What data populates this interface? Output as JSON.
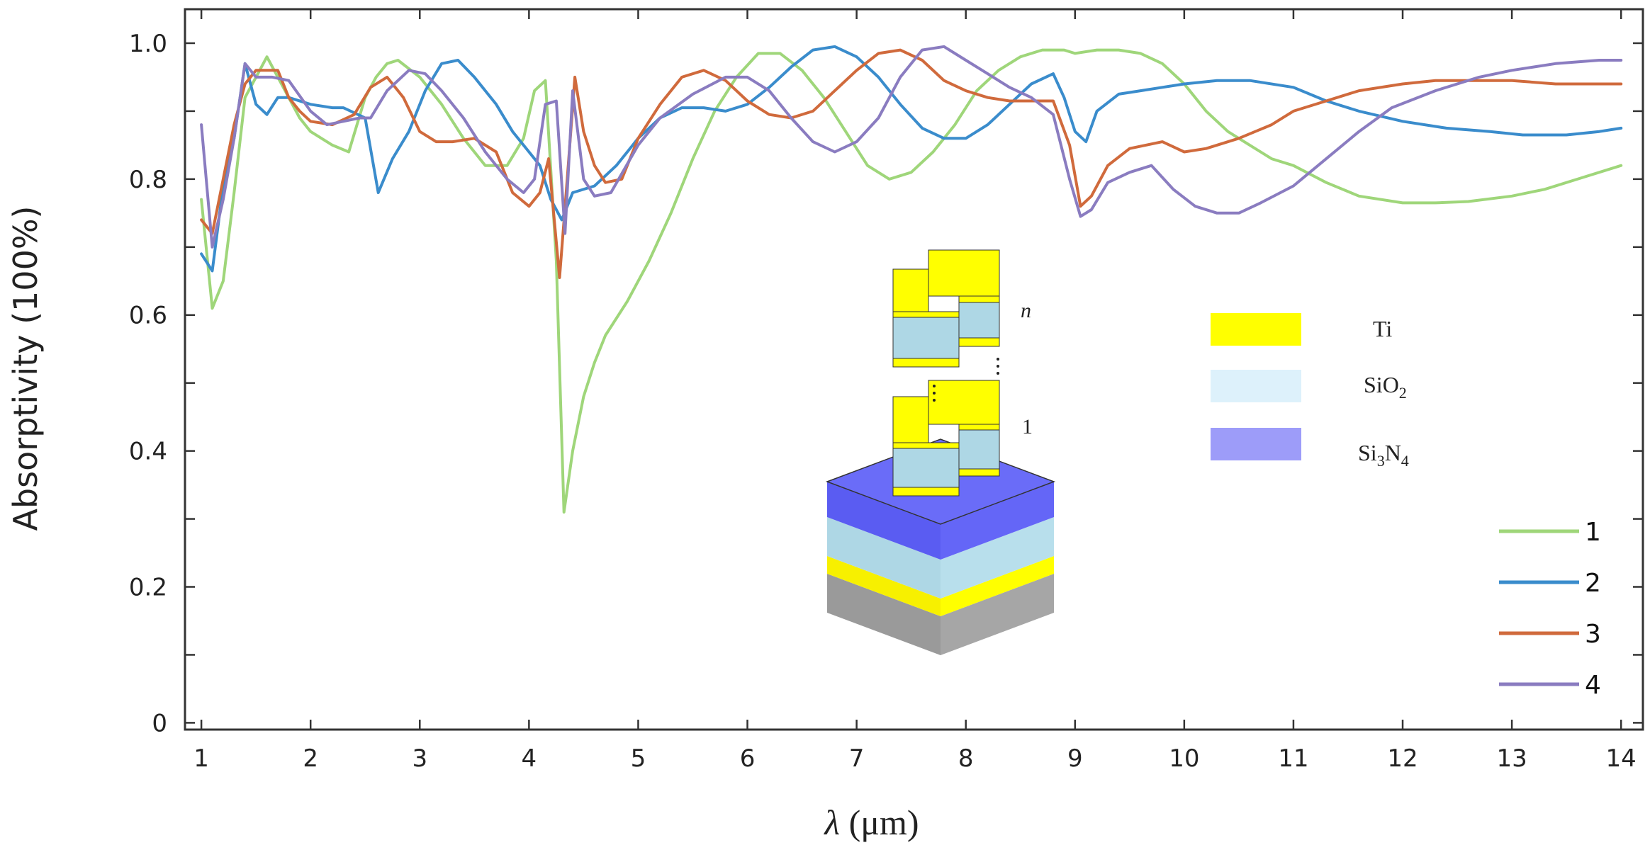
{
  "chart_data": {
    "type": "line",
    "title": "",
    "xlabel_symbol": "λ",
    "xlabel_unit": " (μm)",
    "ylabel": "Absorptivity (100%)",
    "xlim": [
      0.85,
      14.2
    ],
    "ylim": [
      -0.01,
      1.05
    ],
    "xticks": [
      1,
      2,
      3,
      4,
      5,
      6,
      7,
      8,
      9,
      10,
      11,
      12,
      13,
      14
    ],
    "yticks": [
      0,
      0.1,
      0.2,
      0.3,
      0.4,
      0.5,
      0.6,
      0.7,
      0.8,
      0.9,
      1.0
    ],
    "ytick_labels": [
      {
        "value": 0,
        "label": "0"
      },
      {
        "value": 0.2,
        "label": "0.2"
      },
      {
        "value": 0.4,
        "label": "0.4"
      },
      {
        "value": 0.6,
        "label": "0.6"
      },
      {
        "value": 0.8,
        "label": "0.8"
      },
      {
        "value": 1.0,
        "label": "1.0"
      }
    ],
    "legend_position": "bottom-right",
    "series": [
      {
        "name": "1",
        "color": "#9fd67a",
        "points": [
          [
            1,
            0.77
          ],
          [
            1.1,
            0.61
          ],
          [
            1.2,
            0.65
          ],
          [
            1.3,
            0.78
          ],
          [
            1.4,
            0.92
          ],
          [
            1.5,
            0.95
          ],
          [
            1.6,
            0.98
          ],
          [
            1.7,
            0.95
          ],
          [
            1.8,
            0.92
          ],
          [
            1.9,
            0.89
          ],
          [
            2.0,
            0.87
          ],
          [
            2.2,
            0.85
          ],
          [
            2.35,
            0.84
          ],
          [
            2.5,
            0.92
          ],
          [
            2.6,
            0.95
          ],
          [
            2.7,
            0.97
          ],
          [
            2.8,
            0.975
          ],
          [
            3.0,
            0.95
          ],
          [
            3.2,
            0.91
          ],
          [
            3.4,
            0.86
          ],
          [
            3.6,
            0.82
          ],
          [
            3.8,
            0.82
          ],
          [
            3.95,
            0.86
          ],
          [
            4.05,
            0.93
          ],
          [
            4.15,
            0.945
          ],
          [
            4.25,
            0.68
          ],
          [
            4.32,
            0.31
          ],
          [
            4.4,
            0.4
          ],
          [
            4.5,
            0.48
          ],
          [
            4.6,
            0.53
          ],
          [
            4.7,
            0.57
          ],
          [
            4.9,
            0.62
          ],
          [
            5.1,
            0.68
          ],
          [
            5.3,
            0.75
          ],
          [
            5.5,
            0.83
          ],
          [
            5.7,
            0.9
          ],
          [
            5.9,
            0.95
          ],
          [
            6.1,
            0.985
          ],
          [
            6.3,
            0.985
          ],
          [
            6.5,
            0.96
          ],
          [
            6.7,
            0.92
          ],
          [
            6.9,
            0.87
          ],
          [
            7.1,
            0.82
          ],
          [
            7.3,
            0.8
          ],
          [
            7.5,
            0.81
          ],
          [
            7.7,
            0.84
          ],
          [
            7.9,
            0.88
          ],
          [
            8.1,
            0.93
          ],
          [
            8.3,
            0.96
          ],
          [
            8.5,
            0.98
          ],
          [
            8.7,
            0.99
          ],
          [
            8.9,
            0.99
          ],
          [
            9.0,
            0.985
          ],
          [
            9.2,
            0.99
          ],
          [
            9.4,
            0.99
          ],
          [
            9.6,
            0.985
          ],
          [
            9.8,
            0.97
          ],
          [
            10.0,
            0.94
          ],
          [
            10.2,
            0.9
          ],
          [
            10.4,
            0.87
          ],
          [
            10.6,
            0.85
          ],
          [
            10.8,
            0.83
          ],
          [
            11.0,
            0.82
          ],
          [
            11.3,
            0.795
          ],
          [
            11.6,
            0.775
          ],
          [
            12.0,
            0.765
          ],
          [
            12.3,
            0.765
          ],
          [
            12.6,
            0.767
          ],
          [
            13.0,
            0.775
          ],
          [
            13.3,
            0.785
          ],
          [
            13.6,
            0.8
          ],
          [
            14.0,
            0.82
          ]
        ]
      },
      {
        "name": "2",
        "color": "#3a8ccc",
        "points": [
          [
            1,
            0.69
          ],
          [
            1.1,
            0.665
          ],
          [
            1.2,
            0.79
          ],
          [
            1.3,
            0.86
          ],
          [
            1.4,
            0.97
          ],
          [
            1.5,
            0.91
          ],
          [
            1.6,
            0.895
          ],
          [
            1.7,
            0.92
          ],
          [
            1.8,
            0.92
          ],
          [
            2.0,
            0.91
          ],
          [
            2.2,
            0.905
          ],
          [
            2.3,
            0.905
          ],
          [
            2.5,
            0.89
          ],
          [
            2.62,
            0.78
          ],
          [
            2.75,
            0.83
          ],
          [
            2.9,
            0.87
          ],
          [
            3.05,
            0.93
          ],
          [
            3.2,
            0.97
          ],
          [
            3.35,
            0.975
          ],
          [
            3.5,
            0.95
          ],
          [
            3.7,
            0.91
          ],
          [
            3.85,
            0.87
          ],
          [
            4.0,
            0.84
          ],
          [
            4.1,
            0.82
          ],
          [
            4.2,
            0.77
          ],
          [
            4.3,
            0.74
          ],
          [
            4.4,
            0.78
          ],
          [
            4.6,
            0.79
          ],
          [
            4.8,
            0.82
          ],
          [
            5.0,
            0.86
          ],
          [
            5.2,
            0.89
          ],
          [
            5.4,
            0.905
          ],
          [
            5.6,
            0.905
          ],
          [
            5.8,
            0.9
          ],
          [
            6.0,
            0.91
          ],
          [
            6.2,
            0.935
          ],
          [
            6.4,
            0.965
          ],
          [
            6.6,
            0.99
          ],
          [
            6.8,
            0.995
          ],
          [
            7.0,
            0.98
          ],
          [
            7.2,
            0.95
          ],
          [
            7.4,
            0.91
          ],
          [
            7.6,
            0.875
          ],
          [
            7.8,
            0.86
          ],
          [
            8.0,
            0.86
          ],
          [
            8.2,
            0.88
          ],
          [
            8.4,
            0.91
          ],
          [
            8.6,
            0.94
          ],
          [
            8.8,
            0.955
          ],
          [
            8.9,
            0.92
          ],
          [
            9.0,
            0.87
          ],
          [
            9.1,
            0.855
          ],
          [
            9.2,
            0.9
          ],
          [
            9.4,
            0.925
          ],
          [
            9.6,
            0.93
          ],
          [
            9.8,
            0.935
          ],
          [
            10.0,
            0.94
          ],
          [
            10.3,
            0.945
          ],
          [
            10.6,
            0.945
          ],
          [
            11.0,
            0.935
          ],
          [
            11.3,
            0.915
          ],
          [
            11.6,
            0.9
          ],
          [
            12.0,
            0.885
          ],
          [
            12.4,
            0.875
          ],
          [
            12.8,
            0.87
          ],
          [
            13.1,
            0.865
          ],
          [
            13.5,
            0.865
          ],
          [
            13.8,
            0.87
          ],
          [
            14.0,
            0.875
          ]
        ]
      },
      {
        "name": "3",
        "color": "#d06a3c",
        "points": [
          [
            1,
            0.74
          ],
          [
            1.1,
            0.72
          ],
          [
            1.2,
            0.8
          ],
          [
            1.3,
            0.88
          ],
          [
            1.4,
            0.94
          ],
          [
            1.5,
            0.96
          ],
          [
            1.6,
            0.96
          ],
          [
            1.7,
            0.96
          ],
          [
            1.8,
            0.92
          ],
          [
            1.9,
            0.9
          ],
          [
            2.0,
            0.885
          ],
          [
            2.2,
            0.88
          ],
          [
            2.4,
            0.895
          ],
          [
            2.55,
            0.935
          ],
          [
            2.7,
            0.95
          ],
          [
            2.85,
            0.92
          ],
          [
            3.0,
            0.87
          ],
          [
            3.15,
            0.855
          ],
          [
            3.3,
            0.855
          ],
          [
            3.5,
            0.86
          ],
          [
            3.7,
            0.84
          ],
          [
            3.85,
            0.78
          ],
          [
            4.0,
            0.76
          ],
          [
            4.1,
            0.78
          ],
          [
            4.18,
            0.83
          ],
          [
            4.28,
            0.655
          ],
          [
            4.35,
            0.8
          ],
          [
            4.42,
            0.95
          ],
          [
            4.5,
            0.87
          ],
          [
            4.6,
            0.82
          ],
          [
            4.7,
            0.795
          ],
          [
            4.85,
            0.8
          ],
          [
            5.0,
            0.86
          ],
          [
            5.2,
            0.91
          ],
          [
            5.4,
            0.95
          ],
          [
            5.6,
            0.96
          ],
          [
            5.8,
            0.945
          ],
          [
            6.0,
            0.915
          ],
          [
            6.2,
            0.895
          ],
          [
            6.4,
            0.89
          ],
          [
            6.6,
            0.9
          ],
          [
            6.8,
            0.93
          ],
          [
            7.0,
            0.96
          ],
          [
            7.2,
            0.985
          ],
          [
            7.4,
            0.99
          ],
          [
            7.6,
            0.975
          ],
          [
            7.8,
            0.945
          ],
          [
            8.0,
            0.93
          ],
          [
            8.2,
            0.92
          ],
          [
            8.4,
            0.915
          ],
          [
            8.6,
            0.915
          ],
          [
            8.8,
            0.915
          ],
          [
            8.95,
            0.85
          ],
          [
            9.05,
            0.76
          ],
          [
            9.15,
            0.775
          ],
          [
            9.3,
            0.82
          ],
          [
            9.5,
            0.845
          ],
          [
            9.8,
            0.855
          ],
          [
            10.0,
            0.84
          ],
          [
            10.2,
            0.845
          ],
          [
            10.5,
            0.86
          ],
          [
            10.8,
            0.88
          ],
          [
            11.0,
            0.9
          ],
          [
            11.3,
            0.915
          ],
          [
            11.6,
            0.93
          ],
          [
            12.0,
            0.94
          ],
          [
            12.3,
            0.945
          ],
          [
            12.7,
            0.945
          ],
          [
            13.0,
            0.945
          ],
          [
            13.4,
            0.94
          ],
          [
            14.0,
            0.94
          ]
        ]
      },
      {
        "name": "4",
        "color": "#8a7cc0",
        "points": [
          [
            1,
            0.88
          ],
          [
            1.1,
            0.7
          ],
          [
            1.2,
            0.77
          ],
          [
            1.3,
            0.86
          ],
          [
            1.4,
            0.97
          ],
          [
            1.5,
            0.95
          ],
          [
            1.65,
            0.95
          ],
          [
            1.8,
            0.945
          ],
          [
            2.0,
            0.9
          ],
          [
            2.15,
            0.88
          ],
          [
            2.3,
            0.885
          ],
          [
            2.45,
            0.89
          ],
          [
            2.55,
            0.89
          ],
          [
            2.7,
            0.93
          ],
          [
            2.9,
            0.96
          ],
          [
            3.05,
            0.955
          ],
          [
            3.2,
            0.93
          ],
          [
            3.4,
            0.89
          ],
          [
            3.6,
            0.84
          ],
          [
            3.8,
            0.8
          ],
          [
            3.95,
            0.78
          ],
          [
            4.05,
            0.8
          ],
          [
            4.15,
            0.91
          ],
          [
            4.25,
            0.915
          ],
          [
            4.33,
            0.72
          ],
          [
            4.4,
            0.93
          ],
          [
            4.5,
            0.8
          ],
          [
            4.6,
            0.775
          ],
          [
            4.75,
            0.78
          ],
          [
            5.0,
            0.85
          ],
          [
            5.2,
            0.89
          ],
          [
            5.5,
            0.925
          ],
          [
            5.8,
            0.95
          ],
          [
            6.0,
            0.95
          ],
          [
            6.2,
            0.93
          ],
          [
            6.4,
            0.89
          ],
          [
            6.6,
            0.855
          ],
          [
            6.8,
            0.84
          ],
          [
            7.0,
            0.855
          ],
          [
            7.2,
            0.89
          ],
          [
            7.4,
            0.95
          ],
          [
            7.6,
            0.99
          ],
          [
            7.8,
            0.995
          ],
          [
            8.0,
            0.975
          ],
          [
            8.2,
            0.955
          ],
          [
            8.4,
            0.935
          ],
          [
            8.6,
            0.92
          ],
          [
            8.8,
            0.895
          ],
          [
            8.95,
            0.8
          ],
          [
            9.05,
            0.745
          ],
          [
            9.15,
            0.755
          ],
          [
            9.3,
            0.795
          ],
          [
            9.5,
            0.81
          ],
          [
            9.7,
            0.82
          ],
          [
            9.9,
            0.785
          ],
          [
            10.1,
            0.76
          ],
          [
            10.3,
            0.75
          ],
          [
            10.5,
            0.75
          ],
          [
            10.7,
            0.765
          ],
          [
            11.0,
            0.79
          ],
          [
            11.3,
            0.83
          ],
          [
            11.6,
            0.87
          ],
          [
            11.9,
            0.905
          ],
          [
            12.3,
            0.93
          ],
          [
            12.7,
            0.95
          ],
          [
            13.0,
            0.96
          ],
          [
            13.4,
            0.97
          ],
          [
            13.8,
            0.975
          ],
          [
            14.0,
            0.975
          ]
        ]
      }
    ],
    "inset": {
      "stack_labels": [
        "n",
        "1"
      ],
      "material_legend": [
        {
          "name": "Ti",
          "color": "#ffff00"
        },
        {
          "name": "SiO",
          "sub": "2",
          "color": "#ddf1fb"
        },
        {
          "name": "Si",
          "sub1": "3",
          "name2": "N",
          "sub2": "4",
          "color": "#9d9cf9"
        }
      ]
    }
  }
}
